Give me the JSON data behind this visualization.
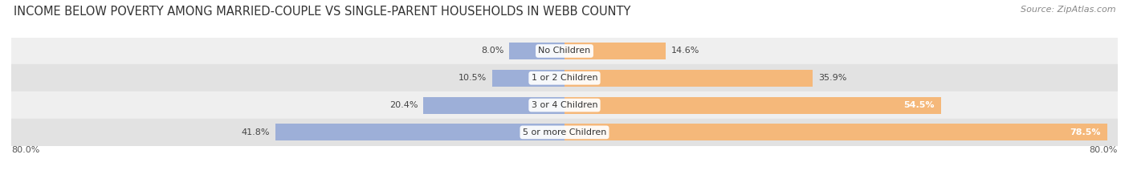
{
  "title": "INCOME BELOW POVERTY AMONG MARRIED-COUPLE VS SINGLE-PARENT HOUSEHOLDS IN WEBB COUNTY",
  "source": "Source: ZipAtlas.com",
  "categories": [
    "No Children",
    "1 or 2 Children",
    "3 or 4 Children",
    "5 or more Children"
  ],
  "married_values": [
    8.0,
    10.5,
    20.4,
    41.8
  ],
  "single_values": [
    14.6,
    35.9,
    54.5,
    78.5
  ],
  "married_color": "#9dafd8",
  "single_color": "#f5b87a",
  "row_bg_colors": [
    "#efefef",
    "#e2e2e2"
  ],
  "xlim_left": -80.0,
  "xlim_right": 80.0,
  "x_axis_left_label": "80.0%",
  "x_axis_right_label": "80.0%",
  "title_fontsize": 10.5,
  "source_fontsize": 8,
  "value_fontsize": 8,
  "label_fontsize": 8,
  "bar_height": 0.62,
  "figsize": [
    14.06,
    2.33
  ],
  "dpi": 100
}
